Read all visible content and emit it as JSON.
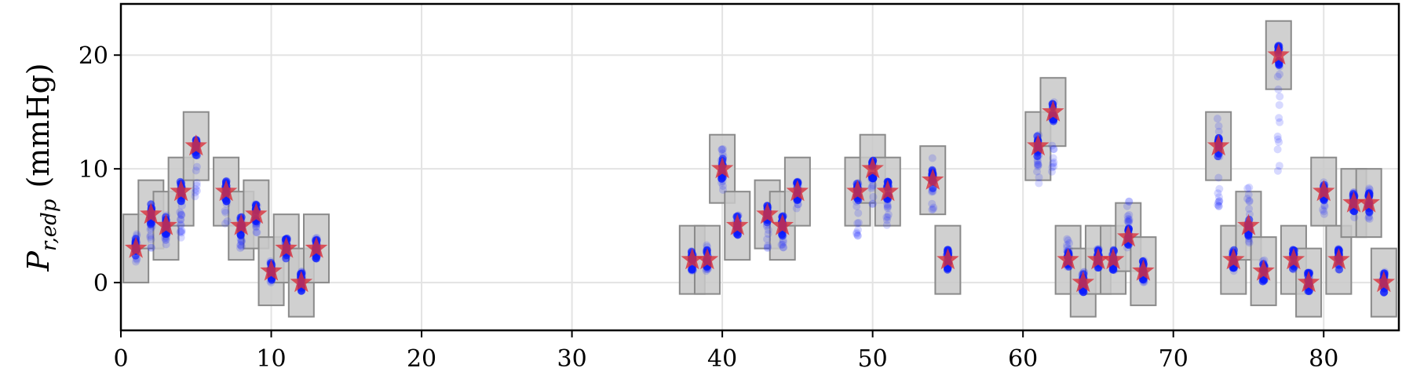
{
  "chart_data": {
    "type": "scatter",
    "xlabel": "",
    "ylabel": "P_{r,edp} (mmHg)",
    "ylabel_parts": {
      "main": "P",
      "sub": "r,edp",
      "unit": "(mmHg)"
    },
    "xlim": [
      0,
      85
    ],
    "ylim": [
      -4.2,
      24.5
    ],
    "xticks": [
      0,
      10,
      20,
      30,
      40,
      50,
      60,
      70,
      80
    ],
    "yticks": [
      0,
      10,
      20
    ],
    "grid": true,
    "series": [
      {
        "marker": "star",
        "color": "#d9303a"
      },
      {
        "marker": "box",
        "color": "#aaaaaa"
      },
      {
        "marker": "circle",
        "color": "#0000ff"
      }
    ],
    "points": [
      {
        "x": 1,
        "target": 3,
        "box": [
          0,
          6
        ],
        "spread": [
          1.5,
          4.5
        ]
      },
      {
        "x": 2,
        "target": 6,
        "box": [
          3,
          9
        ],
        "spread": [
          3,
          7
        ]
      },
      {
        "x": 3,
        "target": 5,
        "box": [
          2,
          8
        ],
        "spread": [
          3,
          6
        ]
      },
      {
        "x": 4,
        "target": 8,
        "box": [
          5,
          11
        ],
        "spread": [
          3.5,
          7
        ]
      },
      {
        "x": 5,
        "target": 12,
        "box": [
          9,
          15
        ],
        "spread": [
          6.5,
          13.5
        ]
      },
      {
        "x": 7,
        "target": 8,
        "box": [
          5,
          11
        ],
        "spread": [
          5,
          9
        ]
      },
      {
        "x": 8,
        "target": 5,
        "box": [
          2,
          8
        ],
        "spread": [
          3,
          6
        ]
      },
      {
        "x": 9,
        "target": 6,
        "box": [
          3,
          9
        ],
        "spread": [
          4,
          7
        ]
      },
      {
        "x": 10,
        "target": 1,
        "box": [
          -2,
          4
        ],
        "spread": [
          0,
          2
        ]
      },
      {
        "x": 11,
        "target": 3,
        "box": [
          0,
          6
        ],
        "spread": [
          2,
          4
        ]
      },
      {
        "x": 12,
        "target": 0,
        "box": [
          -3,
          3
        ],
        "spread": [
          -0.5,
          1
        ]
      },
      {
        "x": 13,
        "target": 3,
        "box": [
          0,
          6
        ],
        "spread": [
          2,
          4
        ]
      },
      {
        "x": 38,
        "target": 2,
        "box": [
          -1,
          5
        ],
        "spread": [
          1,
          3
        ]
      },
      {
        "x": 39,
        "target": 2,
        "box": [
          -1,
          5
        ],
        "spread": [
          1,
          3.5
        ]
      },
      {
        "x": 40,
        "target": 10,
        "box": [
          7,
          13
        ],
        "spread": [
          8,
          12
        ]
      },
      {
        "x": 41,
        "target": 5,
        "box": [
          2,
          8
        ],
        "spread": [
          3,
          6
        ]
      },
      {
        "x": 43,
        "target": 6,
        "box": [
          3,
          9
        ],
        "spread": [
          3,
          7
        ]
      },
      {
        "x": 44,
        "target": 5,
        "box": [
          2,
          8
        ],
        "spread": [
          3,
          6
        ]
      },
      {
        "x": 45,
        "target": 8,
        "box": [
          5,
          11
        ],
        "spread": [
          6,
          9
        ]
      },
      {
        "x": 49,
        "target": 8,
        "box": [
          5,
          11
        ],
        "spread": [
          4,
          9
        ]
      },
      {
        "x": 50,
        "target": 10,
        "box": [
          7,
          13
        ],
        "spread": [
          6,
          11
        ]
      },
      {
        "x": 51,
        "target": 8,
        "box": [
          5,
          11
        ],
        "spread": [
          5,
          9
        ]
      },
      {
        "x": 54,
        "target": 9,
        "box": [
          6,
          12
        ],
        "spread": [
          6,
          11
        ]
      },
      {
        "x": 55,
        "target": 2,
        "box": [
          -1,
          5
        ],
        "spread": [
          1,
          3
        ]
      },
      {
        "x": 61,
        "target": 12,
        "box": [
          9,
          15
        ],
        "spread": [
          7,
          13
        ]
      },
      {
        "x": 62,
        "target": 15,
        "box": [
          12,
          18
        ],
        "spread": [
          9,
          16
        ]
      },
      {
        "x": 63,
        "target": 2,
        "box": [
          -1,
          5
        ],
        "spread": [
          1,
          4
        ]
      },
      {
        "x": 64,
        "target": 0,
        "box": [
          -3,
          3
        ],
        "spread": [
          -0.5,
          1
        ]
      },
      {
        "x": 65,
        "target": 2,
        "box": [
          -1,
          5
        ],
        "spread": [
          1,
          3
        ]
      },
      {
        "x": 66,
        "target": 2,
        "box": [
          -1,
          5
        ],
        "spread": [
          1,
          3
        ]
      },
      {
        "x": 67,
        "target": 4,
        "box": [
          1,
          7
        ],
        "spread": [
          3,
          7.5
        ]
      },
      {
        "x": 68,
        "target": 1,
        "box": [
          -2,
          4
        ],
        "spread": [
          0,
          2
        ]
      },
      {
        "x": 73,
        "target": 12,
        "box": [
          9,
          15
        ],
        "spread": [
          6.5,
          14.5
        ]
      },
      {
        "x": 74,
        "target": 2,
        "box": [
          -1,
          5
        ],
        "spread": [
          1,
          3
        ]
      },
      {
        "x": 75,
        "target": 5,
        "box": [
          2,
          8
        ],
        "spread": [
          3,
          8.5
        ]
      },
      {
        "x": 76,
        "target": 1,
        "box": [
          -2,
          4
        ],
        "spread": [
          0,
          2
        ]
      },
      {
        "x": 77,
        "target": 20,
        "box": [
          17,
          23
        ],
        "spread": [
          9,
          20
        ]
      },
      {
        "x": 78,
        "target": 2,
        "box": [
          -1,
          5
        ],
        "spread": [
          1,
          3
        ]
      },
      {
        "x": 79,
        "target": 0,
        "box": [
          -3,
          3
        ],
        "spread": [
          -0.5,
          1
        ]
      },
      {
        "x": 80,
        "target": 8,
        "box": [
          5,
          11
        ],
        "spread": [
          6,
          9
        ]
      },
      {
        "x": 81,
        "target": 2,
        "box": [
          -1,
          5
        ],
        "spread": [
          1,
          3
        ]
      },
      {
        "x": 82,
        "target": 7,
        "box": [
          4,
          10
        ],
        "spread": [
          5.5,
          8
        ]
      },
      {
        "x": 83,
        "target": 7,
        "box": [
          4,
          10
        ],
        "spread": [
          5.5,
          8.5
        ]
      },
      {
        "x": 84,
        "target": 0,
        "box": [
          -3,
          3
        ],
        "spread": [
          -0.5,
          1
        ]
      }
    ]
  }
}
